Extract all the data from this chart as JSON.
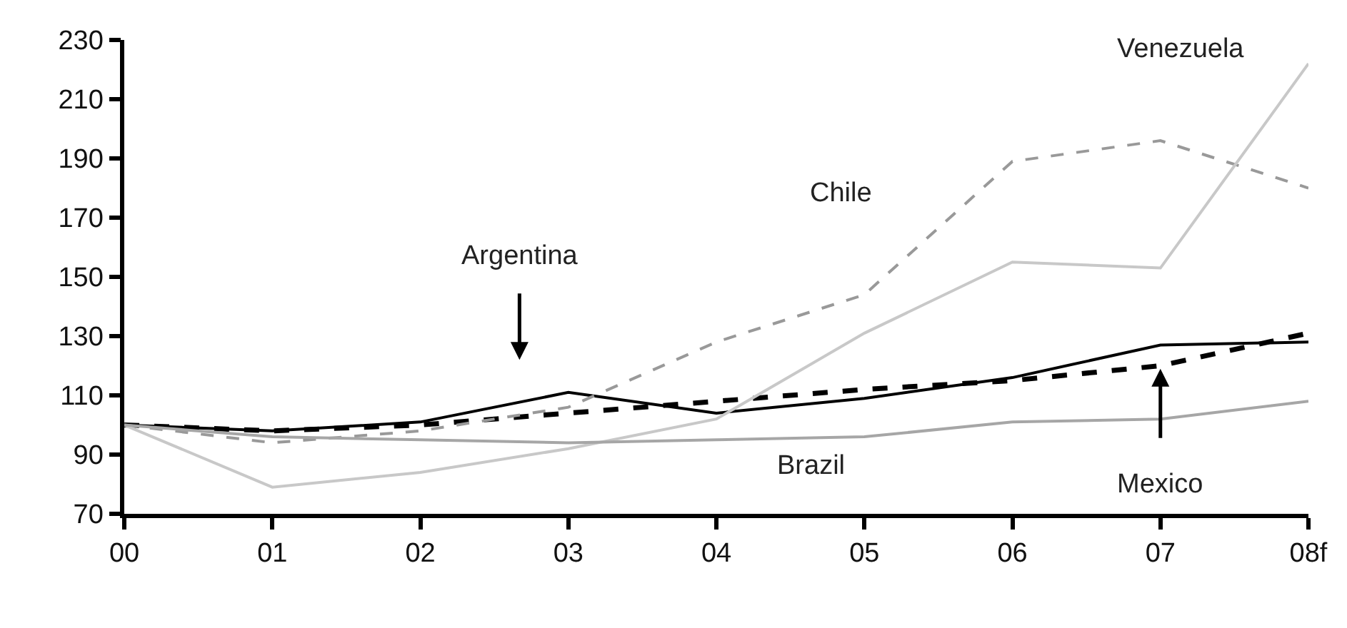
{
  "chart_data": {
    "type": "line",
    "categories": [
      "00",
      "01",
      "02",
      "03",
      "04",
      "05",
      "06",
      "07",
      "08f"
    ],
    "series": [
      {
        "name": "Argentina",
        "color": "#000000",
        "line_style": "solid",
        "values": [
          100,
          98,
          101,
          111,
          104,
          109,
          116,
          127,
          128
        ]
      },
      {
        "name": "Mexico",
        "color": "#000000",
        "line_style": "dashed",
        "values": [
          100,
          98,
          100,
          104,
          108,
          112,
          115,
          120,
          131
        ]
      },
      {
        "name": "Chile",
        "color": "#999999",
        "line_style": "dashed",
        "values": [
          100,
          94,
          98,
          106,
          128,
          144,
          189,
          196,
          180
        ]
      },
      {
        "name": "Venezuela",
        "color": "#c8c8c8",
        "line_style": "solid",
        "values": [
          100,
          79,
          84,
          92,
          102,
          131,
          155,
          153,
          222
        ]
      },
      {
        "name": "Brazil",
        "color": "#a6a6a6",
        "line_style": "solid",
        "values": [
          100,
          96,
          95,
          94,
          95,
          96,
          101,
          102,
          108
        ]
      }
    ],
    "ylim": [
      70,
      230
    ],
    "yticks": [
      70,
      90,
      110,
      130,
      150,
      170,
      190,
      210,
      230
    ],
    "legend": false,
    "marker": "none"
  }
}
